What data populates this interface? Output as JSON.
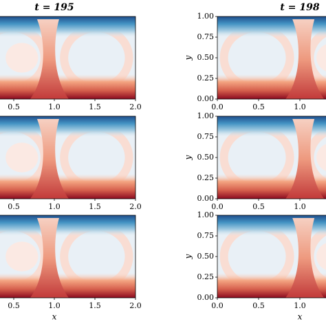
{
  "chart_data": [
    {
      "type": "contour",
      "title": "t = 195",
      "xlim": [
        0,
        2
      ],
      "ylim": [
        0,
        1
      ],
      "xticks": [
        {
          "value": 0.5,
          "label": "0.5"
        },
        {
          "value": 1,
          "label": "1.0"
        },
        {
          "value": 1.5,
          "label": "1.5"
        },
        {
          "value": 2,
          "label": "2.0"
        }
      ]
    },
    {
      "type": "contour",
      "title": "t = 198",
      "xlim": [
        0,
        2
      ],
      "ylim": [
        0,
        1
      ],
      "ylabel": "y",
      "xticks": [
        {
          "value": 0,
          "label": "0.0"
        },
        {
          "value": 0.5,
          "label": "0.5"
        },
        {
          "value": 1,
          "label": "1.0"
        }
      ],
      "yticks": [
        {
          "value": 0,
          "label": "0.00"
        },
        {
          "value": 0.25,
          "label": "0.25"
        },
        {
          "value": 0.5,
          "label": "0.50"
        },
        {
          "value": 0.75,
          "label": "0.75"
        },
        {
          "value": 1,
          "label": "1.00"
        }
      ]
    },
    {
      "type": "contour",
      "xlim": [
        0,
        2
      ],
      "ylim": [
        0,
        1
      ],
      "xticks": [
        {
          "value": 0.5,
          "label": "0.5"
        },
        {
          "value": 1,
          "label": "1.0"
        },
        {
          "value": 1.5,
          "label": "1.5"
        },
        {
          "value": 2,
          "label": "2.0"
        }
      ]
    },
    {
      "type": "contour",
      "xlim": [
        0,
        2
      ],
      "ylim": [
        0,
        1
      ],
      "ylabel": "y",
      "xticks": [
        {
          "value": 0,
          "label": "0.0"
        },
        {
          "value": 0.5,
          "label": "0.5"
        },
        {
          "value": 1,
          "label": "1.0"
        }
      ],
      "yticks": [
        {
          "value": 0,
          "label": "0.00"
        },
        {
          "value": 0.25,
          "label": "0.25"
        },
        {
          "value": 0.5,
          "label": "0.50"
        },
        {
          "value": 0.75,
          "label": "0.75"
        },
        {
          "value": 1,
          "label": "1.00"
        }
      ]
    },
    {
      "type": "contour",
      "xlim": [
        0,
        2
      ],
      "ylim": [
        0,
        1
      ],
      "xlabel": "x",
      "xticks": [
        {
          "value": 0.5,
          "label": "0.5"
        },
        {
          "value": 1,
          "label": "1.0"
        },
        {
          "value": 1.5,
          "label": "1.5"
        },
        {
          "value": 2,
          "label": "2.0"
        }
      ]
    },
    {
      "type": "contour",
      "xlim": [
        0,
        2
      ],
      "ylim": [
        0,
        1
      ],
      "ylabel": "y",
      "xlabel": "x",
      "xticks": [
        {
          "value": 0,
          "label": "0.0"
        },
        {
          "value": 0.5,
          "label": "0.5"
        },
        {
          "value": 1,
          "label": "1.0"
        }
      ],
      "yticks": [
        {
          "value": 0,
          "label": "0.00"
        },
        {
          "value": 0.25,
          "label": "0.25"
        },
        {
          "value": 0.5,
          "label": "0.50"
        },
        {
          "value": 0.75,
          "label": "0.75"
        },
        {
          "value": 1,
          "label": "1.00"
        }
      ]
    }
  ]
}
